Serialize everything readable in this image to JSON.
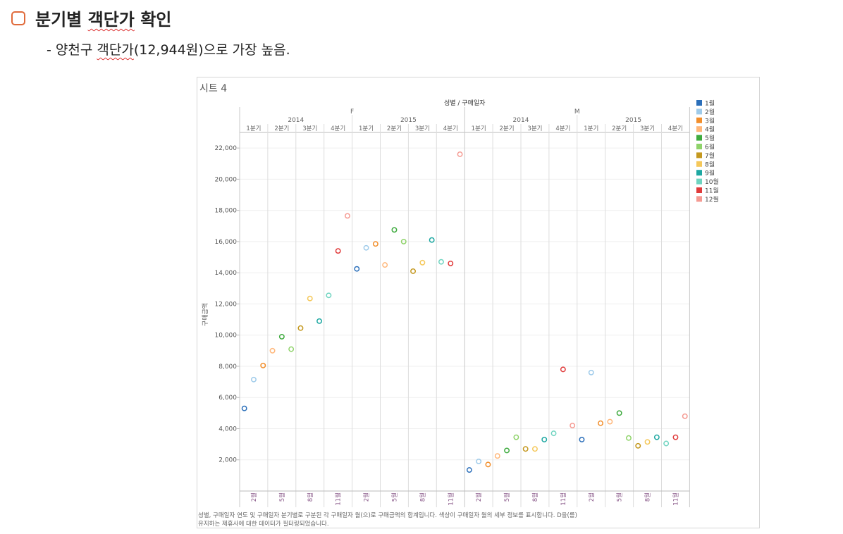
{
  "heading": {
    "title_a": "분기별 ",
    "title_b": "객단가",
    "title_c": " 확인"
  },
  "subheading": {
    "prefix": "- 양천구 ",
    "highlight": "객단가",
    "rest": "(12,944원)으로 가장 높음."
  },
  "sheet_title": "시트 4",
  "caption_line1": "성별, 구매일자 연도 및 구매일자 분기별로 구분된 각 구매일자 월(으)로 구매금액의 합계입니다. 색상이 구매일자 월의 세부 정보를 표시합니다. D을(를)",
  "caption_line2": "유지하는 제휴사에 대한 데이터가 필터링되었습니다.",
  "colors": {
    "accent": "#e06a3a",
    "grid": "#dddddd"
  },
  "chart_data": {
    "type": "scatter",
    "top_title": "성별 / 구매일자",
    "ylabel": "구매금액",
    "ylim": [
      0,
      23000
    ],
    "yticks": [
      2000,
      4000,
      6000,
      8000,
      10000,
      12000,
      14000,
      16000,
      18000,
      20000,
      22000
    ],
    "genders": [
      "F",
      "M"
    ],
    "years": [
      "2014",
      "2015"
    ],
    "quarters": [
      "1분기",
      "2분기",
      "3분기",
      "4분기"
    ],
    "x_tick_labels": [
      "2월",
      "5월",
      "8월",
      "11월"
    ],
    "legend": [
      {
        "label": "1월",
        "color": "#2b6fba"
      },
      {
        "label": "2월",
        "color": "#9fcbea"
      },
      {
        "label": "3월",
        "color": "#f28e2b"
      },
      {
        "label": "4월",
        "color": "#ffb77a"
      },
      {
        "label": "5월",
        "color": "#3fab3f"
      },
      {
        "label": "6월",
        "color": "#8fd36a"
      },
      {
        "label": "7월",
        "color": "#c4981f"
      },
      {
        "label": "8월",
        "color": "#f5c85a"
      },
      {
        "label": "9월",
        "color": "#1ea8a2"
      },
      {
        "label": "10월",
        "color": "#6fd4c0"
      },
      {
        "label": "11월",
        "color": "#e03b3b"
      },
      {
        "label": "12월",
        "color": "#f59a92"
      }
    ],
    "series": [
      {
        "gender": "F",
        "year": "2014",
        "values": [
          5300,
          7150,
          8050,
          9000,
          9900,
          9100,
          10450,
          12350,
          10900,
          12550,
          15400,
          17650
        ]
      },
      {
        "gender": "F",
        "year": "2015",
        "values": [
          14250,
          15600,
          15850,
          14500,
          16750,
          16000,
          14100,
          14650,
          16100,
          14700,
          14600,
          21600
        ]
      },
      {
        "gender": "M",
        "year": "2014",
        "values": [
          1350,
          1900,
          1700,
          2250,
          2600,
          3450,
          2700,
          2700,
          3300,
          3700,
          7800,
          4200
        ]
      },
      {
        "gender": "M",
        "year": "2015",
        "values": [
          3300,
          7600,
          4350,
          4450,
          5000,
          3400,
          2900,
          3150,
          3450,
          3050,
          3450,
          4800
        ]
      }
    ]
  }
}
